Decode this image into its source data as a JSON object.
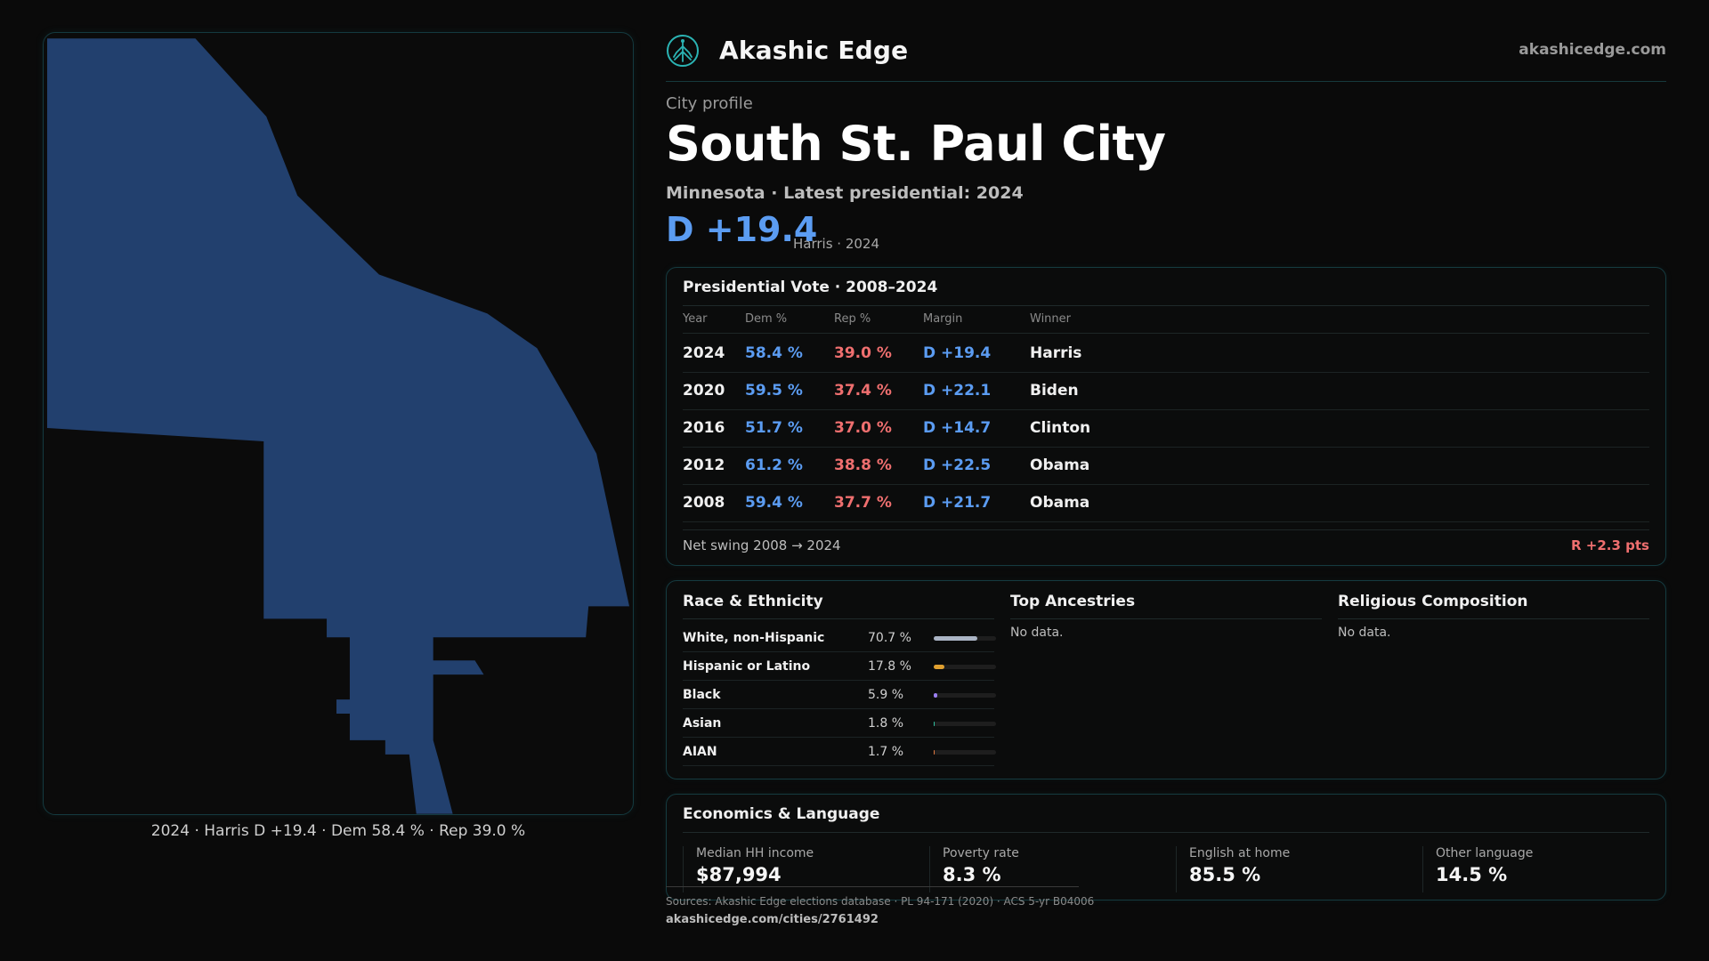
{
  "map": {
    "fill": "#22406e",
    "caption": "2024 · Harris D +19.4 · Dem 58.4 % · Rep 39.0 %"
  },
  "header": {
    "brand_name": "Akashic Edge",
    "brand_url": "akashicedge.com",
    "logo_icon": "tree-logo-icon",
    "accent": "#2bb3b3"
  },
  "profile": {
    "eyebrow": "City profile",
    "title": "South St. Paul City",
    "subtitle": "Minnesota · Latest presidential: 2024",
    "margin": "D +19.4",
    "margin_note": "Harris · 2024"
  },
  "vote": {
    "title": "Presidential Vote · 2008–2024",
    "columns": [
      "Year",
      "Dem %",
      "Rep %",
      "Margin",
      "Winner"
    ],
    "rows": [
      {
        "year": "2024",
        "dem": "58.4 %",
        "rep": "39.0 %",
        "margin": "D +19.4",
        "winner": "Harris"
      },
      {
        "year": "2020",
        "dem": "59.5 %",
        "rep": "37.4 %",
        "margin": "D +22.1",
        "winner": "Biden"
      },
      {
        "year": "2016",
        "dem": "51.7 %",
        "rep": "37.0 %",
        "margin": "D +14.7",
        "winner": "Clinton"
      },
      {
        "year": "2012",
        "dem": "61.2 %",
        "rep": "38.8 %",
        "margin": "D +22.5",
        "winner": "Obama"
      },
      {
        "year": "2008",
        "dem": "59.4 %",
        "rep": "37.7 %",
        "margin": "D +21.7",
        "winner": "Obama"
      }
    ],
    "swing_label": "Net swing 2008 → 2024",
    "swing_value": "R +2.3 pts",
    "dem_color": "#5b9cf2",
    "rep_color": "#ef6f6f"
  },
  "race": {
    "title": "Race & Ethnicity",
    "rows": [
      {
        "name": "White, non-Hispanic",
        "pct": "70.7 %",
        "value": 70.7,
        "color": "#aab4c4"
      },
      {
        "name": "Hispanic or Latino",
        "pct": "17.8 %",
        "value": 17.8,
        "color": "#e0a030"
      },
      {
        "name": "Black",
        "pct": "5.9 %",
        "value": 5.9,
        "color": "#9a7ff0"
      },
      {
        "name": "Asian",
        "pct": "1.8 %",
        "value": 1.8,
        "color": "#2fc0a0"
      },
      {
        "name": "AIAN",
        "pct": "1.7 %",
        "value": 1.7,
        "color": "#e07840"
      }
    ]
  },
  "ancestry": {
    "title": "Top Ancestries",
    "no_data": "No data."
  },
  "religion": {
    "title": "Religious Composition",
    "no_data": "No data."
  },
  "economics": {
    "title": "Economics & Language",
    "items": [
      {
        "label": "Median HH income",
        "value": "$87,994"
      },
      {
        "label": "Poverty rate",
        "value": "8.3 %"
      },
      {
        "label": "English at home",
        "value": "85.5 %"
      },
      {
        "label": "Other language",
        "value": "14.5 %"
      }
    ]
  },
  "footer": {
    "sources": "Sources: Akashic Edge elections database · PL 94-171 (2020) · ACS 5-yr B04006",
    "permalink": "akashicedge.com/cities/2761492"
  }
}
